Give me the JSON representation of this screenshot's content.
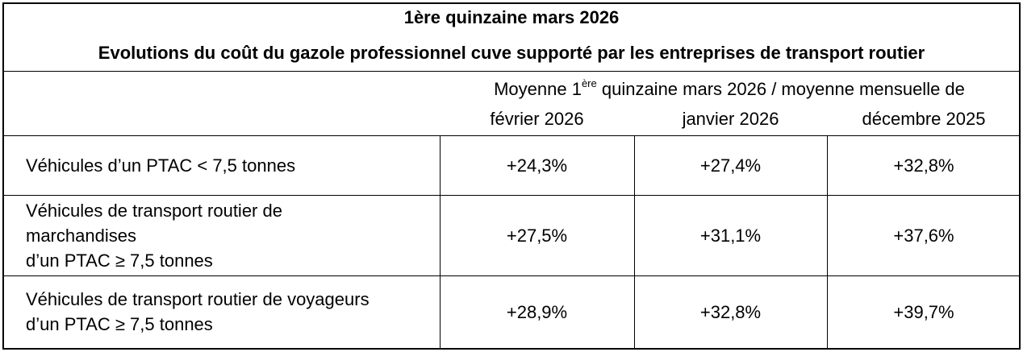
{
  "title": "1ère quinzaine mars 2026",
  "subtitle": "Evolutions du coût du gazole professionnel cuve supporté par les entreprises de transport routier",
  "header": {
    "prefix": "Moyenne 1",
    "superscript": "ère",
    "suffix": " quinzaine mars 2026 / moyenne mensuelle de",
    "columns": [
      "février 2026",
      "janvier 2026",
      "décembre 2025"
    ]
  },
  "rows": [
    {
      "label": [
        "Véhicules d’un PTAC < 7,5 tonnes"
      ],
      "values": [
        "+24,3%",
        "+27,4%",
        "+32,8%"
      ]
    },
    {
      "label": [
        "Véhicules de transport routier de",
        "marchandises",
        "d’un PTAC ≥ 7,5 tonnes"
      ],
      "values": [
        "+27,5%",
        "+31,1%",
        "+37,6%"
      ]
    },
    {
      "label": [
        "Véhicules de transport routier de voyageurs",
        "d’un PTAC ≥ 7,5 tonnes"
      ],
      "values": [
        "+28,9%",
        "+32,8%",
        "+39,7%"
      ]
    }
  ]
}
